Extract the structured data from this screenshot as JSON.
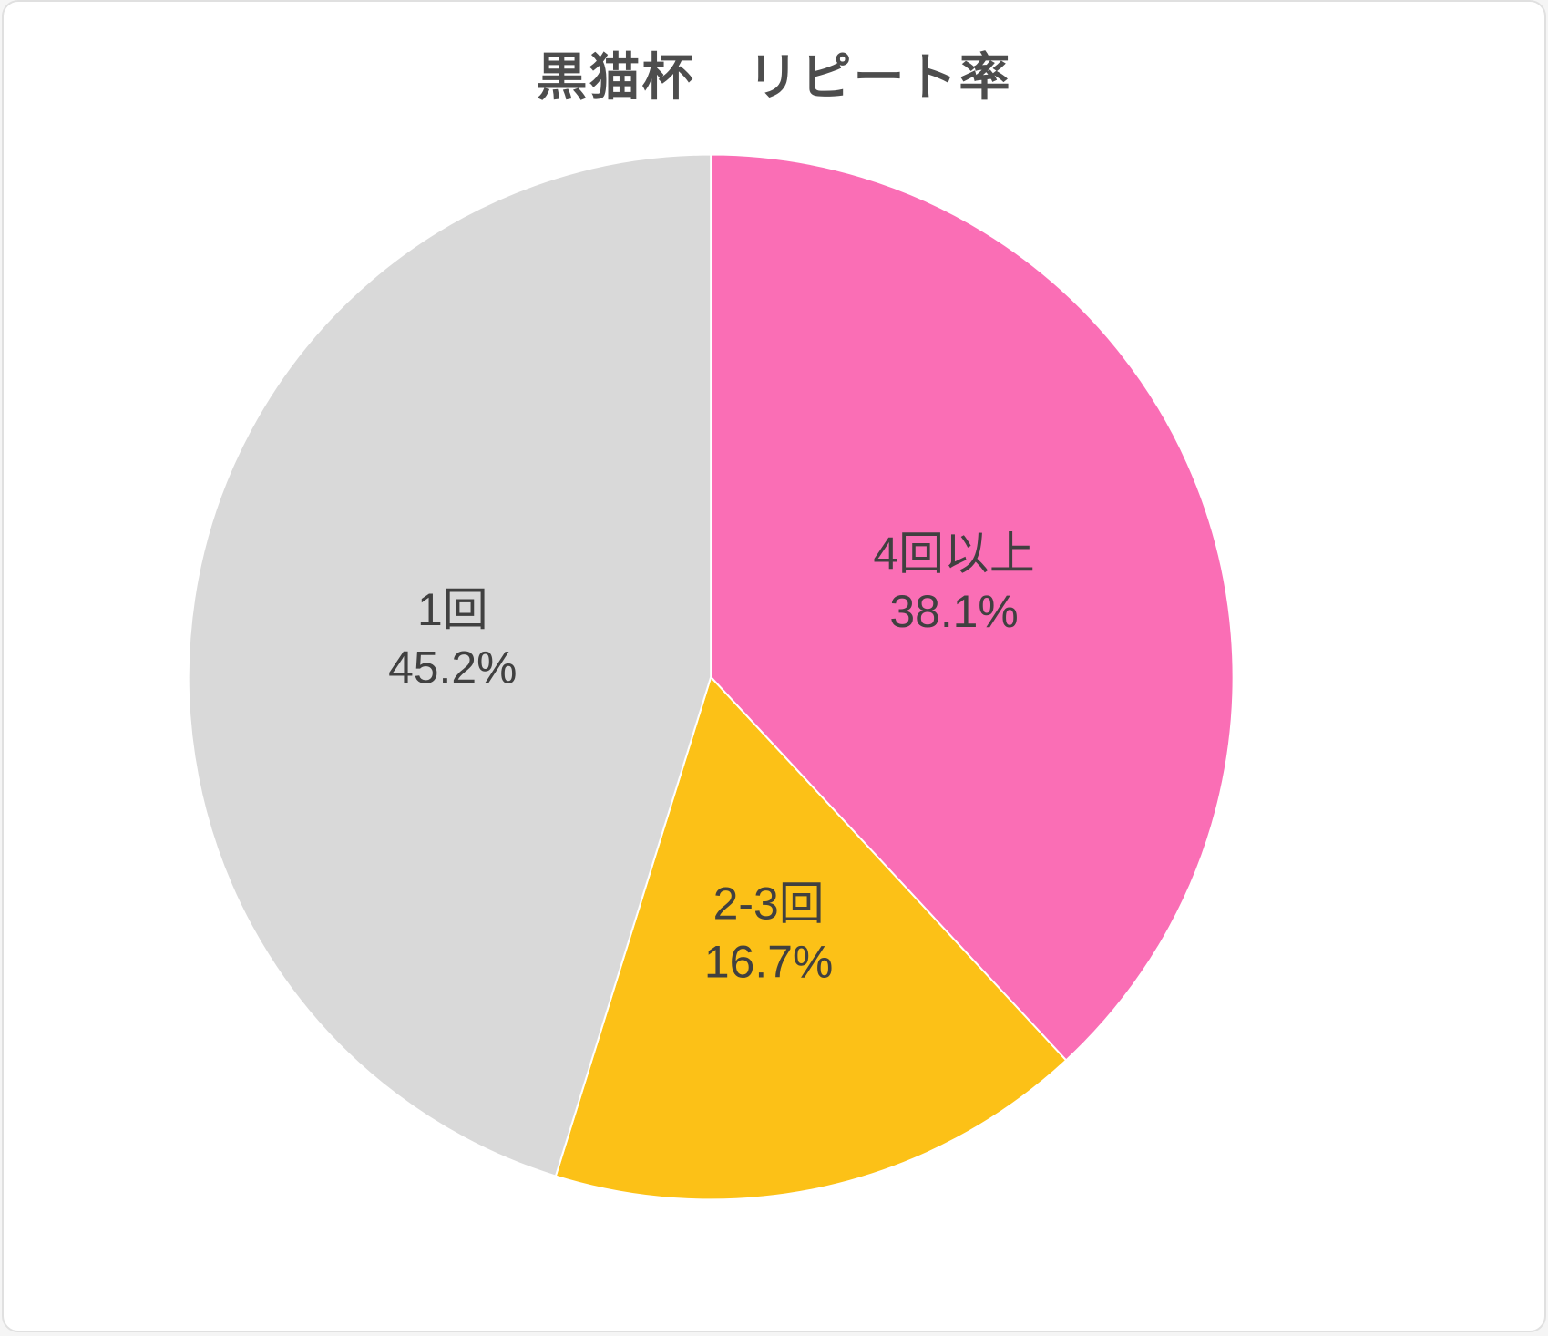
{
  "title": "黒猫杯　リピート率",
  "chart_data": {
    "type": "pie",
    "title": "黒猫杯　リピート率",
    "start_angle_deg": 0,
    "direction": "clockwise",
    "legend_position": "none",
    "grid": false,
    "label_color": "#404040",
    "slices": [
      {
        "label": "4回以上",
        "value": 38.1,
        "percent_text": "38.1%",
        "color": "#FA6EB5"
      },
      {
        "label": "2-3回",
        "value": 16.7,
        "percent_text": "16.7%",
        "color": "#FCC117"
      },
      {
        "label": "1回",
        "value": 45.2,
        "percent_text": "45.2%",
        "color": "#D9D9D9"
      }
    ]
  },
  "style": {
    "background": "#FFFFFF",
    "border_color": "#E0E0E0",
    "title_color": "#4D4D4D"
  }
}
